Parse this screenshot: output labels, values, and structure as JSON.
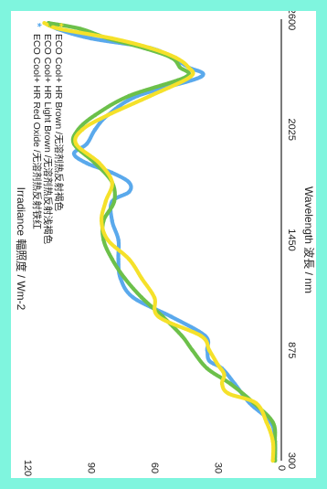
{
  "colors": {
    "background": "#7ff5de",
    "panel": "#ffffff",
    "axis": "#222222"
  },
  "chart_data": {
    "type": "line",
    "title": "",
    "orientation": "rotated-90-clockwise",
    "xlabel": "Wavelength 波長 / nm",
    "ylabel": "Irradiance 輻照度 / Wm-2",
    "xlim": [
      300,
      2600
    ],
    "ylim": [
      0,
      120
    ],
    "x_ticks": [
      "300",
      "875",
      "1450",
      "2025",
      "2600"
    ],
    "y_ticks": [
      "0",
      "30",
      "60",
      "90",
      "120"
    ],
    "grid": false,
    "legend_position": "top-left",
    "series": [
      {
        "name": "ECO Cool+ HR Red Oxide /无溶剂热反射铁红",
        "color": "#5aa9ec",
        "marker": "asterisk",
        "x": [
          300,
          400,
          500,
          600,
          700,
          780,
          820,
          875,
          950,
          1050,
          1150,
          1250,
          1350,
          1450,
          1550,
          1650,
          1700,
          1750,
          1800,
          1850,
          1900,
          1950,
          2025,
          2100,
          2200,
          2300,
          2350,
          2400,
          2450,
          2500,
          2550,
          2580
        ],
        "y": [
          3,
          3,
          5,
          15,
          22,
          28,
          34,
          35,
          36,
          52,
          70,
          76,
          77,
          77,
          80,
          80,
          72,
          72,
          80,
          92,
          98,
          92,
          88,
          82,
          68,
          38,
          44,
          52,
          62,
          90,
          106,
          110
        ]
      },
      {
        "name": "ECO Cool+ HR Light Brown /无溶剂热反射浅褐色",
        "color": "#6cc04a",
        "marker": "asterisk",
        "x": [
          300,
          400,
          500,
          600,
          700,
          780,
          875,
          950,
          1050,
          1150,
          1250,
          1350,
          1450,
          1550,
          1650,
          1750,
          1850,
          1950,
          2025,
          2100,
          2200,
          2300,
          2350,
          2400,
          2450,
          2500,
          2550,
          2580
        ],
        "y": [
          3,
          3,
          4,
          13,
          24,
          35,
          42,
          47,
          56,
          66,
          74,
          80,
          84,
          84,
          79,
          80,
          88,
          98,
          96,
          88,
          72,
          45,
          48,
          52,
          65,
          82,
          95,
          110
        ]
      },
      {
        "name": "ECO Cool+ HR  Brown /无溶剂热反射褐色",
        "color": "#f5e12a",
        "marker": "asterisk",
        "x": [
          300,
          400,
          500,
          600,
          650,
          700,
          750,
          800,
          875,
          950,
          1050,
          1150,
          1250,
          1350,
          1450,
          1550,
          1650,
          1750,
          1850,
          1950,
          2025,
          2100,
          2200,
          2300,
          2350,
          2400,
          2450,
          2500,
          2550,
          2580
        ],
        "y": [
          4,
          4,
          7,
          12,
          25,
          28,
          27,
          30,
          34,
          38,
          58,
          60,
          66,
          72,
          82,
          85,
          83,
          80,
          86,
          97,
          94,
          82,
          62,
          43,
          44,
          50,
          62,
          80,
          105,
          112
        ]
      }
    ]
  }
}
